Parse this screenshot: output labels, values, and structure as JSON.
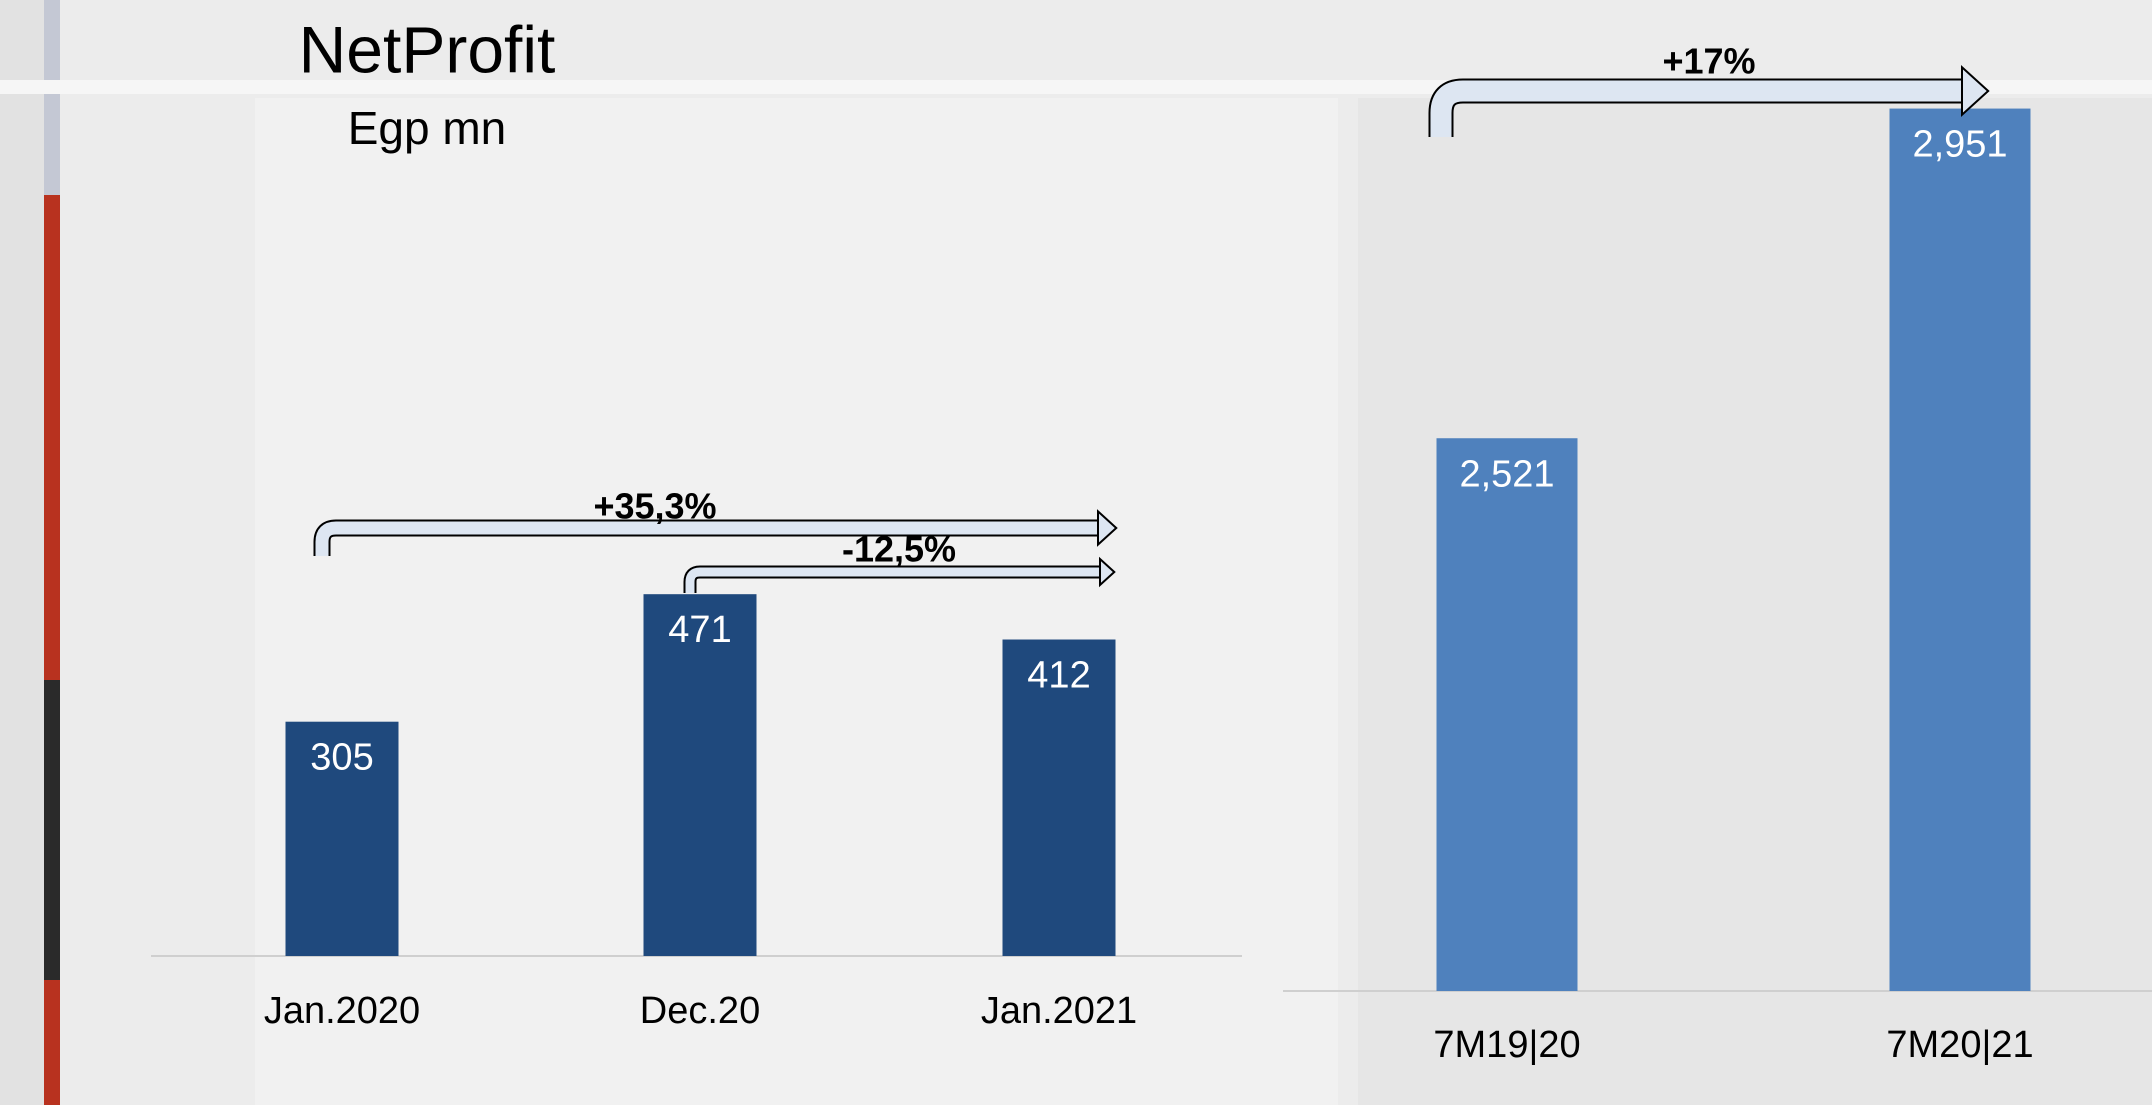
{
  "chart_data": [
    {
      "type": "bar",
      "title": "NetProfit",
      "subtitle": "Egp mn",
      "categories": [
        "Jan.2020",
        "Dec.20",
        "Jan.2021"
      ],
      "values": [
        305,
        471,
        412
      ],
      "color": "#1f497d",
      "ylim": [
        0,
        1100
      ],
      "annotations": [
        "+35,3%",
        "-12,5%"
      ]
    },
    {
      "type": "bar",
      "categories": [
        "7M19|20",
        "7M20|21"
      ],
      "values": [
        2521,
        2951
      ],
      "value_labels": [
        "2,521",
        "2,951"
      ],
      "color": "#4f81bd",
      "ylim": [
        1800,
        3000
      ],
      "annotations": [
        "+17%"
      ]
    }
  ]
}
